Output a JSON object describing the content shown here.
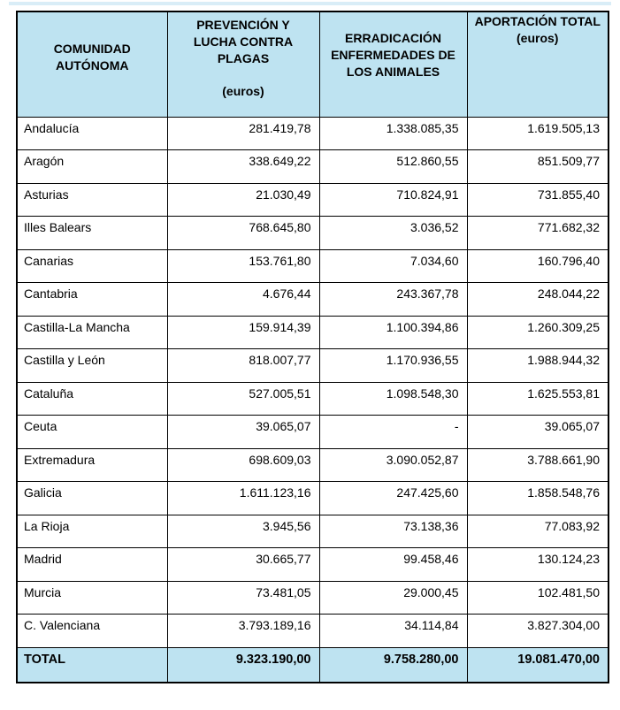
{
  "table": {
    "columns": [
      {
        "label": "COMUNIDAD AUTÓNOMA"
      },
      {
        "label": "PREVENCIÓN Y LUCHA CONTRA PLAGAS",
        "sublabel": "(euros)"
      },
      {
        "label": "ERRADICACIÓN ENFERMEDADES DE LOS ANIMALES"
      },
      {
        "label": "APORTACIÓN TOTAL",
        "sublabel": "(euros)"
      }
    ],
    "rows": [
      [
        "Andalucía",
        "281.419,78",
        "1.338.085,35",
        "1.619.505,13"
      ],
      [
        "Aragón",
        "338.649,22",
        "512.860,55",
        "851.509,77"
      ],
      [
        "Asturias",
        "21.030,49",
        "710.824,91",
        "731.855,40"
      ],
      [
        "Illes Balears",
        "768.645,80",
        "3.036,52",
        "771.682,32"
      ],
      [
        "Canarias",
        "153.761,80",
        "7.034,60",
        "160.796,40"
      ],
      [
        "Cantabria",
        "4.676,44",
        "243.367,78",
        "248.044,22"
      ],
      [
        "Castilla-La Mancha",
        "159.914,39",
        "1.100.394,86",
        "1.260.309,25"
      ],
      [
        "Castilla y León",
        "818.007,77",
        "1.170.936,55",
        "1.988.944,32"
      ],
      [
        "Cataluña",
        "527.005,51",
        "1.098.548,30",
        "1.625.553,81"
      ],
      [
        "Ceuta",
        "39.065,07",
        "-",
        "39.065,07"
      ],
      [
        "Extremadura",
        "698.609,03",
        "3.090.052,87",
        "3.788.661,90"
      ],
      [
        "Galicia",
        "1.611.123,16",
        "247.425,60",
        "1.858.548,76"
      ],
      [
        "La Rioja",
        "3.945,56",
        "73.138,36",
        "77.083,92"
      ],
      [
        "Madrid",
        "30.665,77",
        "99.458,46",
        "130.124,23"
      ],
      [
        "Murcia",
        "73.481,05",
        "29.000,45",
        "102.481,50"
      ],
      [
        "C. Valenciana",
        "3.793.189,16",
        "34.114,84",
        "3.827.304,00"
      ]
    ],
    "total": {
      "label": "TOTAL",
      "values": [
        "9.323.190,00",
        "9.758.280,00",
        "19.081.470,00"
      ]
    }
  },
  "colors": {
    "header_bg": "#bee3f1",
    "border": "#000000",
    "top_stripe": "#d9edf7"
  }
}
